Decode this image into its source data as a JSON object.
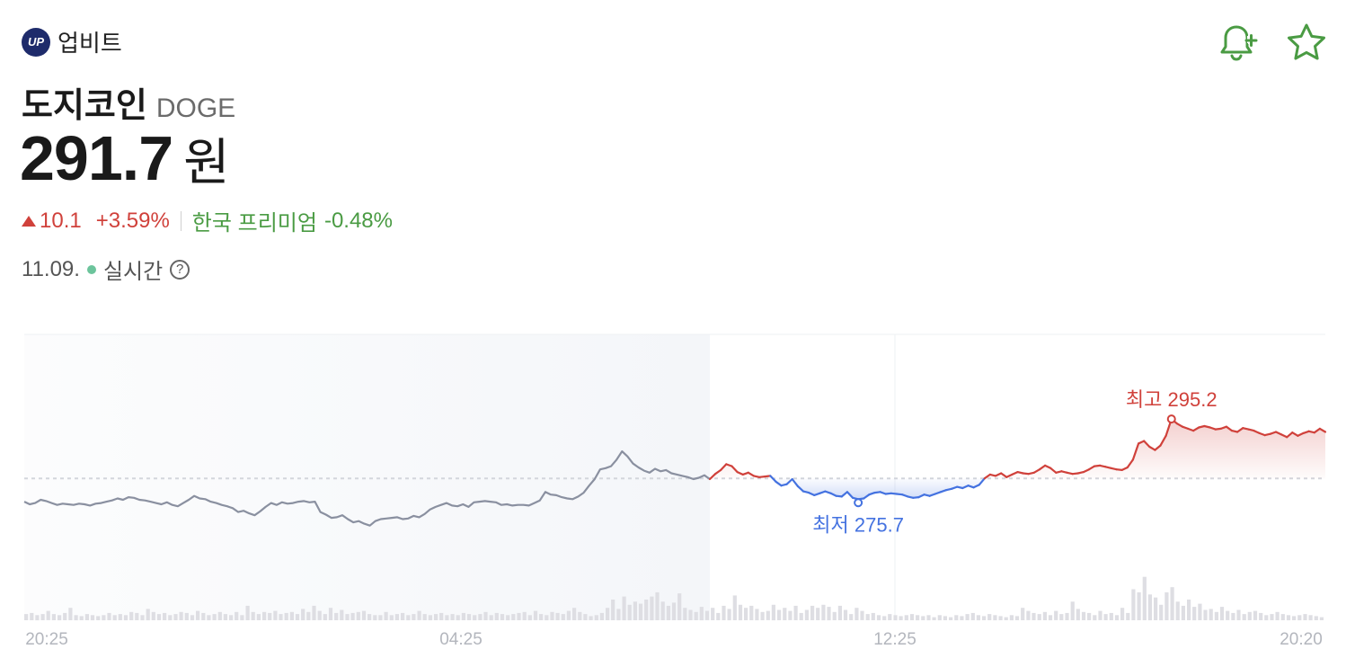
{
  "exchange": {
    "logo_text": "UP",
    "name": "업비트"
  },
  "coin": {
    "name": "도지코인",
    "symbol": "DOGE"
  },
  "price": {
    "value": "291.7",
    "unit": "원"
  },
  "change": {
    "amount": "10.1",
    "percent": "+3.59%",
    "premium_label": "한국 프리미엄",
    "premium_value": "-0.48%"
  },
  "status": {
    "date": "11.09.",
    "realtime_label": "실시간",
    "help": "?"
  },
  "colors": {
    "up": "#d0413b",
    "down": "#4472e0",
    "neutral": "#8a90a0",
    "accent_green": "#4a9b43"
  },
  "chart_data": {
    "type": "line",
    "x_ticks": [
      "20:25",
      "04:25",
      "12:25",
      "20:20"
    ],
    "reference_price": 281.6,
    "ylim": [
      268,
      300
    ],
    "high": {
      "label": "최고",
      "value": 295.2
    },
    "low": {
      "label": "최저",
      "value": 275.7
    },
    "series": [
      {
        "values": [
          278.0,
          277.6,
          277.8,
          278.3,
          278.1,
          277.8,
          277.5,
          277.7,
          277.6,
          277.5,
          277.7,
          277.6,
          277.4,
          277.7,
          277.8,
          278.0,
          278.2,
          278.5,
          278.3,
          278.7,
          278.6,
          278.3,
          278.2,
          278.0,
          277.8,
          277.6,
          277.9,
          277.5,
          277.3,
          277.8,
          278.3,
          278.9,
          278.5,
          278.4,
          278.0,
          277.8,
          277.5,
          277.3,
          277.0,
          276.4,
          276.6,
          276.2,
          275.9,
          276.5,
          277.2,
          277.8,
          277.5,
          277.9,
          277.7,
          277.8,
          278.0,
          278.1,
          277.9,
          278.0,
          276.4,
          276.0,
          275.5,
          275.6,
          275.9,
          275.3,
          274.8,
          275.0,
          274.6,
          274.3,
          275.0,
          275.3,
          275.4,
          275.5,
          275.6,
          275.3,
          275.4,
          275.8,
          275.6,
          276.1,
          276.8,
          277.2,
          277.5,
          277.8,
          277.4,
          277.3,
          277.6,
          277.2,
          277.9,
          278.0,
          278.1,
          278.0,
          277.9,
          277.5,
          277.6,
          277.4,
          277.5,
          277.5,
          277.4,
          277.8,
          278.2,
          279.5,
          279.1,
          279.0,
          278.7,
          278.5,
          278.4,
          278.8,
          279.4,
          280.5,
          281.5,
          283.0,
          283.2,
          283.5,
          284.5,
          285.8,
          285.0,
          283.9,
          283.3,
          282.8,
          282.5,
          283.1,
          282.7,
          282.9,
          282.4,
          282.2,
          282.0,
          281.8,
          281.5,
          281.7,
          282.1,
          281.5
        ]
      },
      {
        "values": [
          281.5,
          282.3,
          282.9,
          283.8,
          283.5,
          282.6,
          282.2,
          282.5,
          282.0,
          281.8,
          281.9,
          282.0,
          281.1,
          280.5,
          280.7,
          281.5,
          280.4,
          279.6,
          279.4,
          279.0,
          279.3,
          279.6,
          279.3,
          278.9,
          278.8,
          279.5,
          278.6,
          278.4,
          278.5,
          279.1,
          279.4,
          279.5,
          279.2,
          279.3,
          279.2,
          279.1,
          278.8,
          278.6,
          278.7,
          279.1,
          278.9,
          279.2,
          279.5,
          279.8,
          280.0,
          280.3,
          280.1,
          280.5,
          280.2,
          280.6,
          281.6,
          282.2,
          282.0,
          282.4,
          281.8,
          282.2,
          282.6,
          282.4,
          282.3,
          282.5,
          283.0,
          283.6,
          283.2,
          282.5,
          282.7,
          282.5,
          282.3,
          282.4,
          282.6,
          283.0,
          283.5,
          283.6,
          283.4,
          283.2,
          283.0,
          282.9,
          283.3,
          284.5,
          287.0,
          287.4,
          286.5,
          286.0,
          286.7,
          288.2,
          290.8,
          290.1,
          289.6,
          289.3,
          289.0,
          289.5,
          289.7,
          289.5,
          289.2,
          289.3,
          289.6,
          289.0,
          288.8,
          289.4,
          289.2,
          289.0,
          288.6,
          288.3,
          288.5,
          288.8,
          288.4,
          288.0,
          288.7,
          288.2,
          288.6,
          288.9,
          288.7,
          289.3,
          288.8
        ]
      }
    ],
    "volume": [
      0.06,
      0.07,
      0.05,
      0.06,
      0.09,
      0.06,
      0.05,
      0.07,
      0.12,
      0.05,
      0.04,
      0.06,
      0.05,
      0.04,
      0.05,
      0.07,
      0.05,
      0.06,
      0.05,
      0.08,
      0.07,
      0.05,
      0.11,
      0.08,
      0.06,
      0.07,
      0.05,
      0.06,
      0.08,
      0.07,
      0.05,
      0.09,
      0.07,
      0.05,
      0.06,
      0.08,
      0.06,
      0.05,
      0.08,
      0.05,
      0.14,
      0.08,
      0.06,
      0.08,
      0.07,
      0.09,
      0.06,
      0.07,
      0.08,
      0.06,
      0.11,
      0.08,
      0.14,
      0.09,
      0.06,
      0.12,
      0.07,
      0.1,
      0.06,
      0.07,
      0.08,
      0.09,
      0.06,
      0.05,
      0.05,
      0.08,
      0.05,
      0.06,
      0.07,
      0.05,
      0.06,
      0.09,
      0.06,
      0.05,
      0.06,
      0.07,
      0.05,
      0.06,
      0.05,
      0.07,
      0.06,
      0.05,
      0.06,
      0.08,
      0.05,
      0.07,
      0.06,
      0.05,
      0.06,
      0.07,
      0.08,
      0.05,
      0.09,
      0.06,
      0.05,
      0.08,
      0.07,
      0.06,
      0.09,
      0.12,
      0.08,
      0.06,
      0.04,
      0.05,
      0.07,
      0.12,
      0.2,
      0.11,
      0.23,
      0.15,
      0.18,
      0.16,
      0.2,
      0.23,
      0.27,
      0.18,
      0.14,
      0.17,
      0.26,
      0.12,
      0.1,
      0.08,
      0.13,
      0.09,
      0.12,
      0.07,
      0.14,
      0.11,
      0.24,
      0.15,
      0.12,
      0.14,
      0.11,
      0.08,
      0.09,
      0.15,
      0.1,
      0.12,
      0.09,
      0.14,
      0.07,
      0.1,
      0.14,
      0.12,
      0.15,
      0.13,
      0.08,
      0.14,
      0.1,
      0.06,
      0.12,
      0.09,
      0.06,
      0.07,
      0.05,
      0.04,
      0.06,
      0.05,
      0.04,
      0.05,
      0.06,
      0.05,
      0.04,
      0.05,
      0.03,
      0.05,
      0.04,
      0.03,
      0.05,
      0.04,
      0.06,
      0.07,
      0.05,
      0.04,
      0.06,
      0.05,
      0.04,
      0.03,
      0.05,
      0.04,
      0.12,
      0.09,
      0.07,
      0.06,
      0.08,
      0.05,
      0.09,
      0.06,
      0.07,
      0.18,
      0.11,
      0.08,
      0.07,
      0.05,
      0.09,
      0.06,
      0.07,
      0.05,
      0.12,
      0.07,
      0.3,
      0.27,
      0.42,
      0.25,
      0.22,
      0.15,
      0.27,
      0.32,
      0.18,
      0.14,
      0.2,
      0.13,
      0.16,
      0.1,
      0.11,
      0.08,
      0.13,
      0.09,
      0.07,
      0.1,
      0.06,
      0.08,
      0.09,
      0.07,
      0.05,
      0.06,
      0.08,
      0.06,
      0.05,
      0.04,
      0.05,
      0.06,
      0.05,
      0.04,
      0.03
    ]
  }
}
